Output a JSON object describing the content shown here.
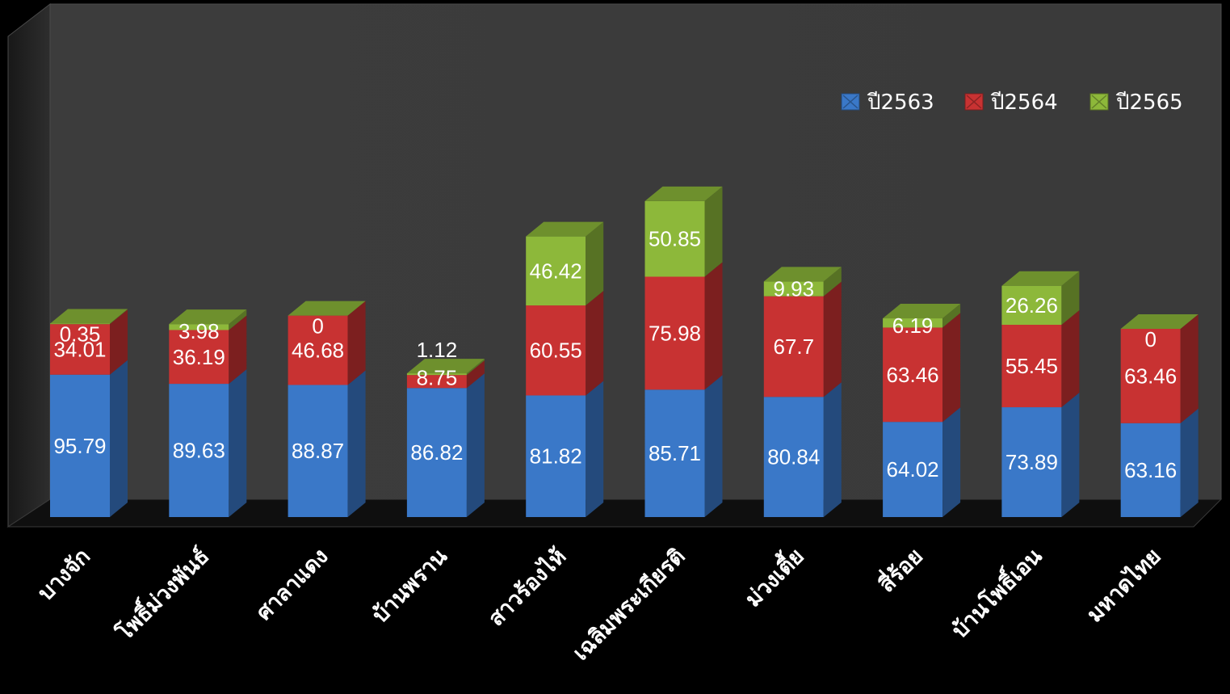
{
  "chart_data": {
    "type": "bar",
    "stacked": true,
    "three_d": true,
    "categories": [
      "บางจัก",
      "โพธิ์ม่วงพันธ์",
      "ศาลาแดง",
      "บ้านพราน",
      "สาวร้องไห้",
      "เฉลิมพระเกียรติ",
      "ม่วงเตี้ย",
      "สี่ร้อย",
      "บ้านโพธิ์เอน",
      "มหาดไทย"
    ],
    "series": [
      {
        "name": "ปี2563",
        "color": "#3a78c8",
        "values": [
          95.79,
          89.63,
          88.87,
          86.82,
          81.82,
          85.71,
          80.84,
          64.02,
          73.89,
          63.16
        ]
      },
      {
        "name": "ปี2564",
        "color": "#c83232",
        "values": [
          34.01,
          36.19,
          46.68,
          8.75,
          60.55,
          75.98,
          67.7,
          63.46,
          55.45,
          63.46
        ]
      },
      {
        "name": "ปี2565",
        "color": "#8db83a",
        "values": [
          0.35,
          3.98,
          0,
          1.12,
          46.42,
          50.85,
          9.93,
          6.19,
          26.26,
          0
        ]
      }
    ],
    "data_labels": [
      [
        "95.79",
        "89.63",
        "88.87",
        "86.82",
        "81.82",
        "85.71",
        "80.84",
        "64.02",
        "73.89",
        "63.16"
      ],
      [
        "34.01",
        "36.19",
        "46.68",
        "8.75",
        "60.55",
        "75.98",
        "67.7",
        "63.46",
        "55.45",
        "63.46"
      ],
      [
        "0.35",
        "3.98",
        "0",
        "1.12",
        "46.42",
        "50.85",
        "9.93",
        "6.19",
        "26.26",
        "0"
      ]
    ],
    "legend_position": "top-right",
    "grid": false,
    "title": "",
    "xlabel": "",
    "ylabel": ""
  }
}
